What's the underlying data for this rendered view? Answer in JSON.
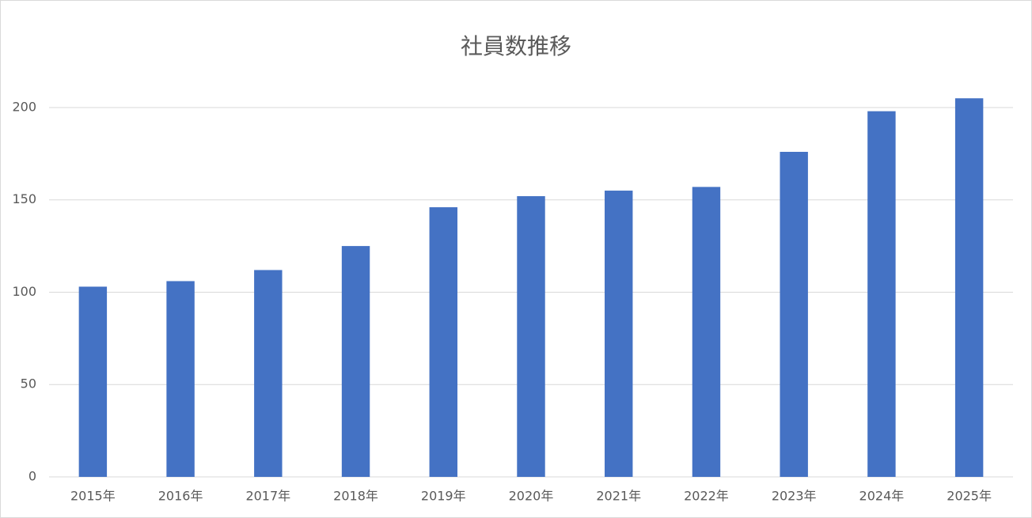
{
  "chart_data": {
    "type": "bar",
    "title": "社員数推移",
    "categories": [
      "2015年",
      "2016年",
      "2017年",
      "2018年",
      "2019年",
      "2020年",
      "2021年",
      "2022年",
      "2023年",
      "2024年",
      "2025年"
    ],
    "values": [
      103,
      106,
      112,
      125,
      146,
      152,
      155,
      157,
      176,
      198,
      205
    ],
    "color": "#4472c4",
    "ylim": [
      0,
      210
    ],
    "yticks": [
      0,
      50,
      100,
      150,
      200
    ],
    "grid": true
  }
}
